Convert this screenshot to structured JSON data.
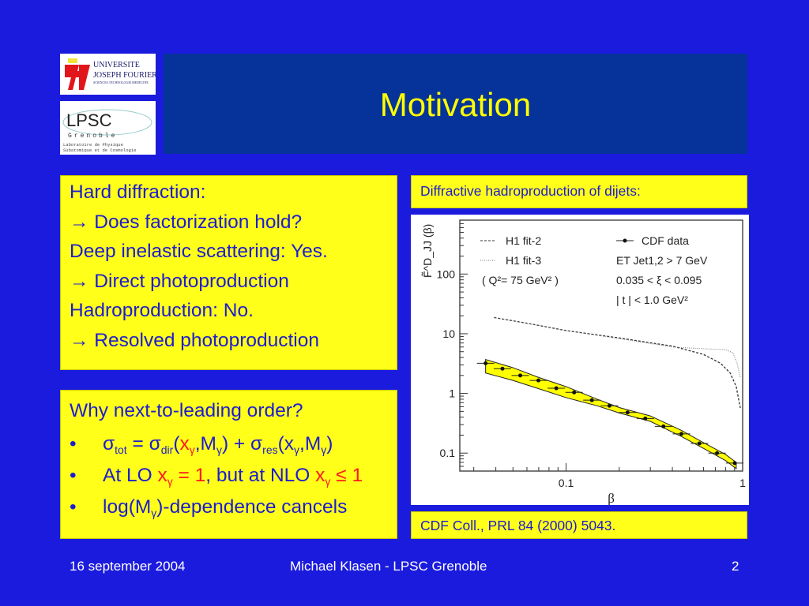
{
  "title": "Motivation",
  "logos": {
    "ujf": "UNIVERSITE JOSEPH FOURIER SCIENCES.TECHNOLOGIE.MEDECINE",
    "lpsc": "LPSC Grenoble Laboratoire de Physique Subatomique et de Cosmologie"
  },
  "box1": {
    "lines": [
      "Hard diffraction:",
      "→ Does factorization hold?",
      "Deep inelastic scattering: Yes.",
      "→ Direct photoproduction",
      "Hadroproduction: No.",
      "→ Resolved photoproduction"
    ]
  },
  "box2": {
    "heading": "Why next-to-leading order?",
    "bullet": "•",
    "b1": {
      "sigma": "σ",
      "tot": "tot",
      "eq": " = ",
      "dir": "dir",
      "open": "(",
      "x": "x",
      "gamma": "γ",
      "comma_m": ",M",
      "close": ")",
      "plus": " + ",
      "res": "res",
      "xg": "(x"
    },
    "b2": {
      "a": "At LO ",
      "x": "x",
      "g": "γ",
      "eq1": " = 1",
      "b": ", but at NLO ",
      "le": " ≤ 1"
    },
    "b3": {
      "a": "log(M",
      "g": "γ",
      "b": ")-dependence cancels"
    }
  },
  "right_header": "Diffractive hadroproduction of dijets:",
  "citation": "CDF Coll., PRL 84 (2000) 5043.",
  "footer": {
    "date": "16 september 2004",
    "author": "Michael Klasen - LPSC Grenoble",
    "page": "2"
  },
  "colors": {
    "bg": "#1b1bde",
    "title_bg": "#06339a",
    "yellow": "#ffff1a",
    "text": "#1d1dcf",
    "red": "#ff1a1a"
  },
  "chart_data": {
    "type": "line",
    "ylabel": "F̃^D_JJ (β)",
    "xlabel": "β",
    "xscale": "log",
    "yscale": "log",
    "xlim": [
      0.025,
      1
    ],
    "ylim": [
      0.05,
      800
    ],
    "xticks": [
      {
        "v": 0.1,
        "label": "0.1"
      },
      {
        "v": 1,
        "label": "1"
      }
    ],
    "yticks": [
      {
        "v": 0.1,
        "label": "0.1"
      },
      {
        "v": 1,
        "label": "1"
      },
      {
        "v": 10,
        "label": "10"
      },
      {
        "v": 100,
        "label": "100"
      }
    ],
    "legend": [
      "H1 fit-2",
      "H1 fit-3",
      "( Q²= 75 GeV² )",
      "CDF data"
    ],
    "annotations": [
      "E_T^Jet1,2 > 7 GeV",
      "0.035 < ξ < 0.095",
      "| t | < 1.0 GeV²"
    ],
    "series": [
      {
        "name": "CDF data",
        "style": "points",
        "x": [
          0.035,
          0.0436,
          0.055,
          0.0697,
          0.088,
          0.111,
          0.14,
          0.176,
          0.223,
          0.281,
          0.356,
          0.45,
          0.569,
          0.716,
          0.902
        ],
        "y": [
          3.2,
          2.6,
          2.0,
          1.65,
          1.22,
          1.04,
          0.77,
          0.62,
          0.48,
          0.38,
          0.28,
          0.21,
          0.145,
          0.1,
          0.068
        ]
      },
      {
        "name": "H1 fit-2",
        "style": "dashed",
        "x": [
          0.039,
          0.06,
          0.1,
          0.2,
          0.4,
          0.6,
          0.75,
          0.85,
          0.92,
          0.97
        ],
        "y": [
          18.7,
          15,
          11.3,
          8.5,
          6.2,
          4.5,
          3.2,
          2.2,
          1.3,
          0.57
        ]
      },
      {
        "name": "H1 fit-3",
        "style": "dotted",
        "x": [
          0.039,
          0.06,
          0.1,
          0.2,
          0.4,
          0.6,
          0.8,
          0.88,
          0.93,
          0.97
        ],
        "y": [
          18.7,
          15,
          11.3,
          8.3,
          6.0,
          5.6,
          5.4,
          4.8,
          3.2,
          1.8
        ]
      },
      {
        "name": "band",
        "style": "band",
        "x": [
          0.035,
          0.05,
          0.07,
          0.1,
          0.15,
          0.2,
          0.3,
          0.45,
          0.6,
          0.8,
          0.92
        ],
        "upper": [
          3.7,
          2.7,
          1.85,
          1.3,
          0.8,
          0.58,
          0.42,
          0.24,
          0.15,
          0.095,
          0.07
        ],
        "lower": [
          2.2,
          1.65,
          1.2,
          0.85,
          0.62,
          0.47,
          0.34,
          0.19,
          0.12,
          0.075,
          0.055
        ]
      }
    ]
  }
}
